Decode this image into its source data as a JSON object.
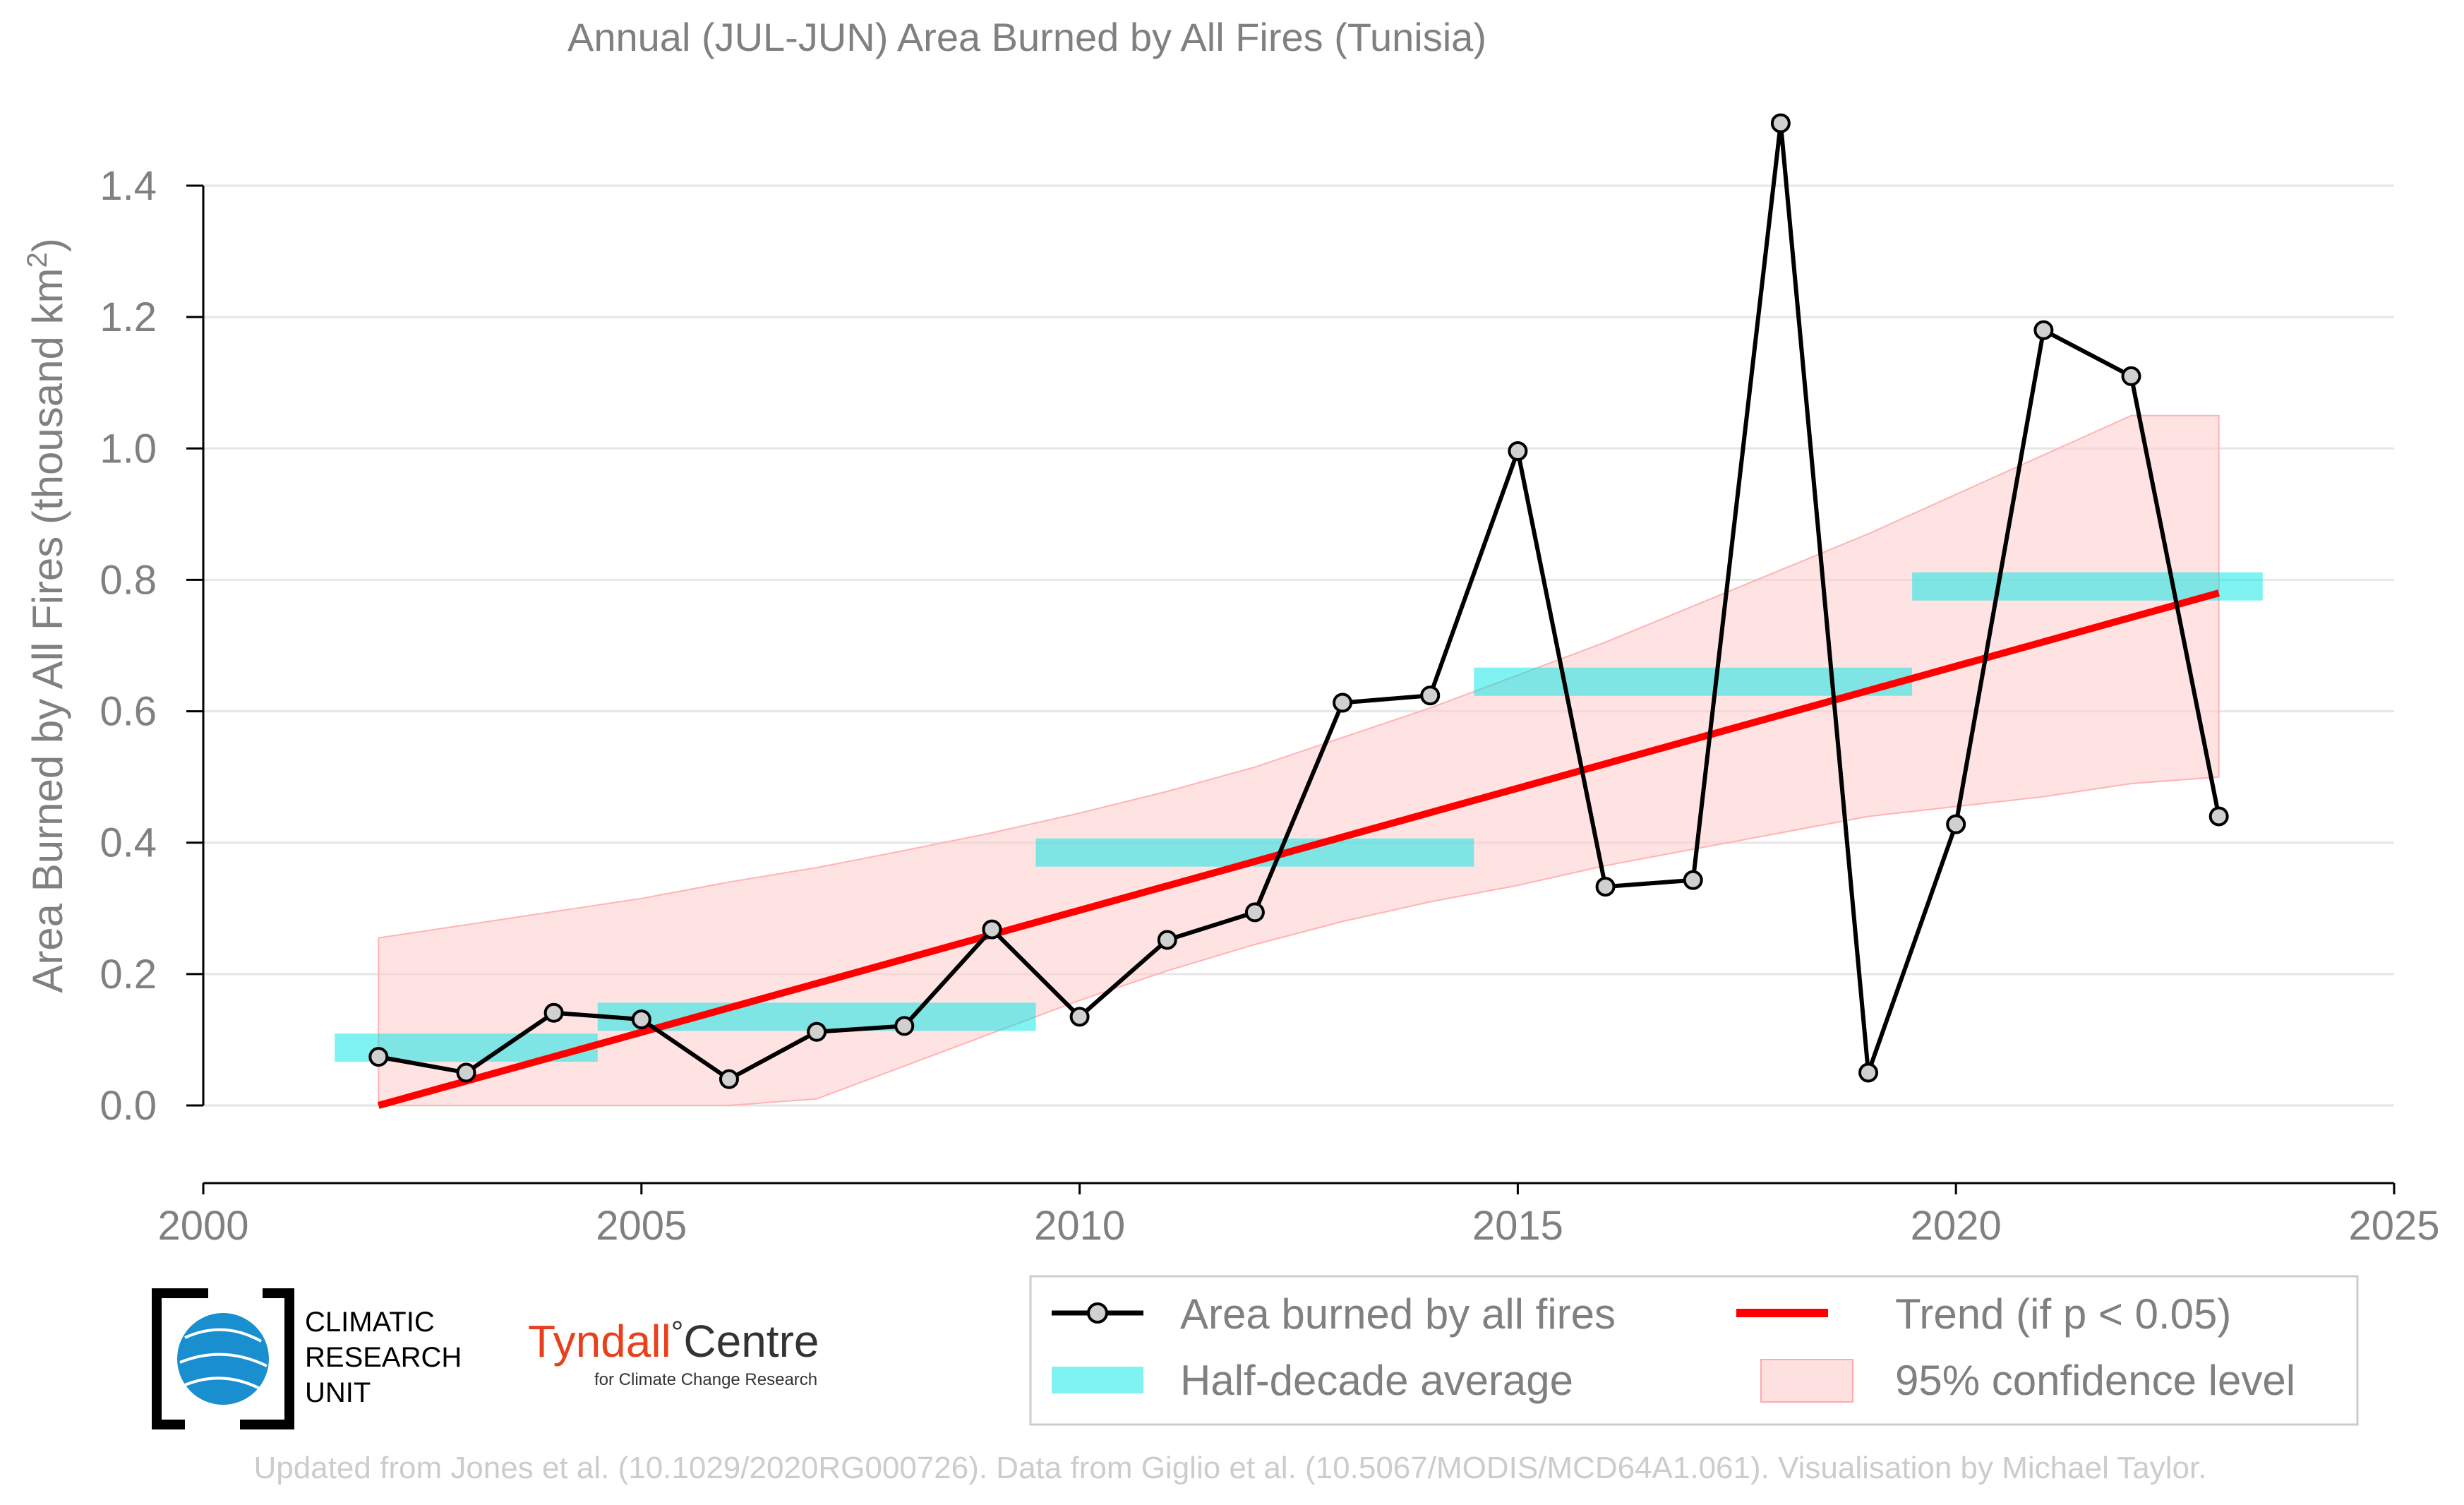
{
  "chart_data": {
    "type": "line",
    "title": "Annual (JUL-JUN) Area Burned by All Fires (Tunisia)",
    "ylabel": "Area Burned by All Fires (thousand km²)",
    "xlabel": "",
    "xlim": [
      2000,
      2025
    ],
    "ylim": [
      -0.12,
      1.5
    ],
    "x_ticks": [
      "2000",
      "2005",
      "2010",
      "2015",
      "2020",
      "2025"
    ],
    "y_ticks": [
      "0.0",
      "0.2",
      "0.4",
      "0.6",
      "0.8",
      "1.0",
      "1.2",
      "1.4"
    ],
    "grid": "horizontal",
    "legend_position": "bottom-right",
    "series": [
      {
        "name": "Area burned by all fires",
        "color": "#000000",
        "x": [
          2002,
          2003,
          2004,
          2005,
          2006,
          2007,
          2008,
          2009,
          2010,
          2011,
          2012,
          2013,
          2014,
          2015,
          2016,
          2017,
          2018,
          2019,
          2020,
          2021,
          2022,
          2023
        ],
        "y": [
          0.074,
          0.05,
          0.141,
          0.131,
          0.04,
          0.112,
          0.121,
          0.268,
          0.135,
          0.252,
          0.294,
          0.613,
          0.624,
          0.996,
          0.333,
          0.343,
          1.495,
          0.05,
          0.428,
          1.18,
          1.11,
          0.44
        ]
      }
    ],
    "half_decade_average": {
      "name": "Half-decade average",
      "color": "#00e5e5",
      "segments": [
        {
          "x0": 2001.5,
          "x1": 2004.5,
          "y": 0.088
        },
        {
          "x0": 2004.5,
          "x1": 2009.5,
          "y": 0.135
        },
        {
          "x0": 2009.5,
          "x1": 2014.5,
          "y": 0.385
        },
        {
          "x0": 2014.5,
          "x1": 2019.5,
          "y": 0.645
        },
        {
          "x0": 2019.5,
          "x1": 2023.5,
          "y": 0.79
        }
      ]
    },
    "trend": {
      "name": "Trend (if p < 0.05)",
      "color": "#ff0000",
      "x": [
        2002,
        2023
      ],
      "y": [
        0.0,
        0.78
      ]
    },
    "confidence": {
      "name": "95% confidence level",
      "color": "#ffcccc",
      "x": [
        2002,
        2003,
        2004,
        2005,
        2006,
        2007,
        2008,
        2009,
        2010,
        2011,
        2012,
        2013,
        2014,
        2015,
        2016,
        2017,
        2018,
        2019,
        2020,
        2021,
        2022,
        2023
      ],
      "upper": [
        0.255,
        0.275,
        0.295,
        0.315,
        0.34,
        0.362,
        0.388,
        0.415,
        0.445,
        0.478,
        0.515,
        0.56,
        0.605,
        0.655,
        0.705,
        0.76,
        0.815,
        0.87,
        0.93,
        0.99,
        1.05,
        1.05
      ],
      "lower": [
        0.0,
        0.0,
        0.0,
        0.0,
        0.0,
        0.01,
        0.06,
        0.11,
        0.16,
        0.205,
        0.245,
        0.28,
        0.31,
        0.335,
        0.365,
        0.39,
        0.415,
        0.44,
        0.455,
        0.47,
        0.49,
        0.5
      ]
    }
  },
  "legend": {
    "items": [
      {
        "label": "Area burned by all fires"
      },
      {
        "label": "Trend (if p < 0.05)"
      },
      {
        "label": "Half-decade average"
      },
      {
        "label": "95% confidence level"
      }
    ]
  },
  "logos": {
    "cru_line1": "CLIMATIC",
    "cru_line2": "RESEARCH",
    "cru_line3": "UNIT",
    "tyndall_name": "Tyndall",
    "tyndall_degree": "°",
    "tyndall_centre": "Centre",
    "tyndall_sub": "for Climate Change Research"
  },
  "footer": {
    "credit": "Updated from Jones et al. (10.1029/2020RG000726). Data from Giglio et al. (10.5067/MODIS/MCD64A1.061). Visualisation by Michael Taylor."
  }
}
